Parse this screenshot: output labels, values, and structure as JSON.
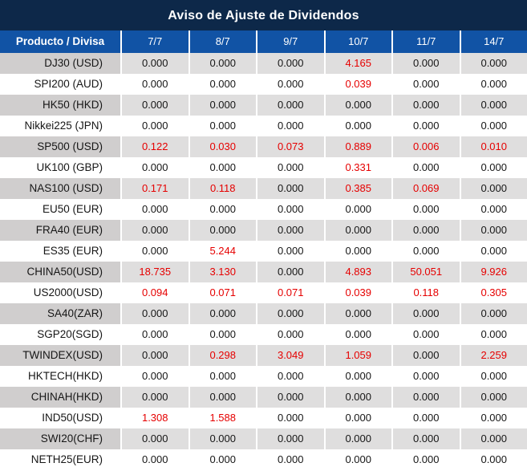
{
  "header": {
    "title": "Aviso de Ajuste de Dividendos"
  },
  "table": {
    "product_column_header": "Producto / Divisa",
    "date_column_headers": [
      "7/7",
      "8/7",
      "9/7",
      "10/7",
      "11/7",
      "14/7"
    ],
    "rows": [
      {
        "product": "DJ30 (USD)",
        "values": [
          "0.000",
          "0.000",
          "0.000",
          "4.165",
          "0.000",
          "0.000"
        ],
        "red_flags": [
          false,
          false,
          false,
          true,
          false,
          false
        ]
      },
      {
        "product": "SPI200 (AUD)",
        "values": [
          "0.000",
          "0.000",
          "0.000",
          "0.039",
          "0.000",
          "0.000"
        ],
        "red_flags": [
          false,
          false,
          false,
          true,
          false,
          false
        ]
      },
      {
        "product": "HK50 (HKD)",
        "values": [
          "0.000",
          "0.000",
          "0.000",
          "0.000",
          "0.000",
          "0.000"
        ],
        "red_flags": [
          false,
          false,
          false,
          false,
          false,
          false
        ]
      },
      {
        "product": "Nikkei225 (JPN)",
        "values": [
          "0.000",
          "0.000",
          "0.000",
          "0.000",
          "0.000",
          "0.000"
        ],
        "red_flags": [
          false,
          false,
          false,
          false,
          false,
          false
        ]
      },
      {
        "product": "SP500 (USD)",
        "values": [
          "0.122",
          "0.030",
          "0.073",
          "0.889",
          "0.006",
          "0.010"
        ],
        "red_flags": [
          true,
          true,
          true,
          true,
          true,
          true
        ]
      },
      {
        "product": "UK100 (GBP)",
        "values": [
          "0.000",
          "0.000",
          "0.000",
          "0.331",
          "0.000",
          "0.000"
        ],
        "red_flags": [
          false,
          false,
          false,
          true,
          false,
          false
        ]
      },
      {
        "product": "NAS100 (USD)",
        "values": [
          "0.171",
          "0.118",
          "0.000",
          "0.385",
          "0.069",
          "0.000"
        ],
        "red_flags": [
          true,
          true,
          false,
          true,
          true,
          false
        ]
      },
      {
        "product": "EU50 (EUR)",
        "values": [
          "0.000",
          "0.000",
          "0.000",
          "0.000",
          "0.000",
          "0.000"
        ],
        "red_flags": [
          false,
          false,
          false,
          false,
          false,
          false
        ]
      },
      {
        "product": "FRA40 (EUR)",
        "values": [
          "0.000",
          "0.000",
          "0.000",
          "0.000",
          "0.000",
          "0.000"
        ],
        "red_flags": [
          false,
          false,
          false,
          false,
          false,
          false
        ]
      },
      {
        "product": "ES35 (EUR)",
        "values": [
          "0.000",
          "5.244",
          "0.000",
          "0.000",
          "0.000",
          "0.000"
        ],
        "red_flags": [
          false,
          true,
          false,
          false,
          false,
          false
        ]
      },
      {
        "product": "CHINA50(USD)",
        "values": [
          "18.735",
          "3.130",
          "0.000",
          "4.893",
          "50.051",
          "9.926"
        ],
        "red_flags": [
          true,
          true,
          false,
          true,
          true,
          true
        ]
      },
      {
        "product": "US2000(USD)",
        "values": [
          "0.094",
          "0.071",
          "0.071",
          "0.039",
          "0.118",
          "0.305"
        ],
        "red_flags": [
          true,
          true,
          true,
          true,
          true,
          true
        ]
      },
      {
        "product": "SA40(ZAR)",
        "values": [
          "0.000",
          "0.000",
          "0.000",
          "0.000",
          "0.000",
          "0.000"
        ],
        "red_flags": [
          false,
          false,
          false,
          false,
          false,
          false
        ]
      },
      {
        "product": "SGP20(SGD)",
        "values": [
          "0.000",
          "0.000",
          "0.000",
          "0.000",
          "0.000",
          "0.000"
        ],
        "red_flags": [
          false,
          false,
          false,
          false,
          false,
          false
        ]
      },
      {
        "product": "TWINDEX(USD)",
        "values": [
          "0.000",
          "0.298",
          "3.049",
          "1.059",
          "0.000",
          "2.259"
        ],
        "red_flags": [
          false,
          true,
          true,
          true,
          false,
          true
        ]
      },
      {
        "product": "HKTECH(HKD)",
        "values": [
          "0.000",
          "0.000",
          "0.000",
          "0.000",
          "0.000",
          "0.000"
        ],
        "red_flags": [
          false,
          false,
          false,
          false,
          false,
          false
        ]
      },
      {
        "product": "CHINAH(HKD)",
        "values": [
          "0.000",
          "0.000",
          "0.000",
          "0.000",
          "0.000",
          "0.000"
        ],
        "red_flags": [
          false,
          false,
          false,
          false,
          false,
          false
        ]
      },
      {
        "product": "IND50(USD)",
        "values": [
          "1.308",
          "1.588",
          "0.000",
          "0.000",
          "0.000",
          "0.000"
        ],
        "red_flags": [
          true,
          true,
          false,
          false,
          false,
          false
        ]
      },
      {
        "product": "SWI20(CHF)",
        "values": [
          "0.000",
          "0.000",
          "0.000",
          "0.000",
          "0.000",
          "0.000"
        ],
        "red_flags": [
          false,
          false,
          false,
          false,
          false,
          false
        ]
      },
      {
        "product": "NETH25(EUR)",
        "values": [
          "0.000",
          "0.000",
          "0.000",
          "0.000",
          "0.000",
          "0.000"
        ],
        "red_flags": [
          false,
          false,
          false,
          false,
          false,
          false
        ]
      }
    ]
  },
  "colors": {
    "title_bg": "#0d2849",
    "header_bg": "#1153a5",
    "product_gray": "#d0cece",
    "value_gray": "#dfdede",
    "red_value": "#e60000",
    "text_color": "#161616"
  }
}
